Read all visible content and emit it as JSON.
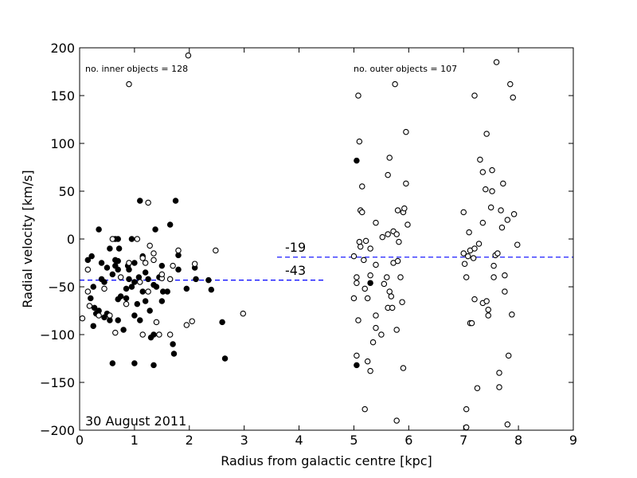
{
  "chart_data": {
    "type": "scatter",
    "xlabel": "Radius from galactic centre [kpc]",
    "ylabel": "Radial velocity [km/s]",
    "xlim": [
      0,
      9
    ],
    "ylim": [
      -200,
      200
    ],
    "xticks": [
      0,
      1,
      2,
      3,
      4,
      5,
      6,
      7,
      8,
      9
    ],
    "yticks": [
      -200,
      -150,
      -100,
      -50,
      0,
      50,
      100,
      150,
      200
    ],
    "ytick_labels": [
      "−200",
      "−150",
      "−100",
      "−50",
      "0",
      "50",
      "100",
      "150",
      "200"
    ],
    "annotations": {
      "inner_count": "no. inner objects = 128",
      "outer_count": "no. outer objects = 107",
      "date": "30 August 2011",
      "inner_mean_label": "-43",
      "outer_mean_label": "-19"
    },
    "mean_lines": [
      {
        "name": "inner mean",
        "y": -43,
        "x_range": [
          0,
          4.5
        ],
        "color": "#0000ff"
      },
      {
        "name": "outer mean",
        "y": -19,
        "x_range": [
          3.6,
          9
        ],
        "color": "#0000ff"
      }
    ],
    "series": [
      {
        "name": "filled",
        "marker": "filled",
        "points": [
          [
            0.15,
            -22
          ],
          [
            0.22,
            -18
          ],
          [
            0.25,
            -50
          ],
          [
            0.2,
            -62
          ],
          [
            0.27,
            -72
          ],
          [
            0.3,
            -78
          ],
          [
            0.35,
            -75
          ],
          [
            0.35,
            10
          ],
          [
            0.4,
            -25
          ],
          [
            0.4,
            -42
          ],
          [
            0.45,
            -45
          ],
          [
            0.45,
            -82
          ],
          [
            0.5,
            -30
          ],
          [
            0.55,
            -10
          ],
          [
            0.55,
            -85
          ],
          [
            0.6,
            -37
          ],
          [
            0.65,
            -28
          ],
          [
            0.65,
            -22
          ],
          [
            0.65,
            0
          ],
          [
            0.7,
            0
          ],
          [
            0.7,
            -23
          ],
          [
            0.7,
            -32
          ],
          [
            0.7,
            -63
          ],
          [
            0.7,
            -85
          ],
          [
            0.72,
            -10
          ],
          [
            0.75,
            -60
          ],
          [
            0.8,
            -95
          ],
          [
            0.85,
            -52
          ],
          [
            0.88,
            -28
          ],
          [
            0.9,
            -32
          ],
          [
            0.9,
            -42
          ],
          [
            0.95,
            -50
          ],
          [
            1.0,
            -45
          ],
          [
            1.0,
            -25
          ],
          [
            1.0,
            -80
          ],
          [
            1.05,
            -68
          ],
          [
            1.08,
            -40
          ],
          [
            1.1,
            -85
          ],
          [
            1.1,
            40
          ],
          [
            1.15,
            -55
          ],
          [
            1.2,
            -35
          ],
          [
            1.2,
            -65
          ],
          [
            1.25,
            -42
          ],
          [
            1.28,
            -75
          ],
          [
            1.3,
            -103
          ],
          [
            1.35,
            -100
          ],
          [
            1.38,
            10
          ],
          [
            1.4,
            -50
          ],
          [
            1.45,
            -40
          ],
          [
            1.5,
            -28
          ],
          [
            1.52,
            -55
          ],
          [
            1.6,
            -55
          ],
          [
            1.65,
            15
          ],
          [
            1.7,
            -110
          ],
          [
            1.72,
            -120
          ],
          [
            1.75,
            40
          ],
          [
            1.8,
            -32
          ],
          [
            1.8,
            -17
          ],
          [
            1.95,
            -52
          ],
          [
            2.1,
            -30
          ],
          [
            2.12,
            -42
          ],
          [
            2.35,
            -43
          ],
          [
            2.4,
            -53
          ],
          [
            2.6,
            -87
          ],
          [
            2.65,
            -125
          ],
          [
            0.6,
            -130
          ],
          [
            1.0,
            -130
          ],
          [
            1.35,
            -132
          ],
          [
            0.25,
            -91
          ],
          [
            0.95,
            0
          ],
          [
            1.35,
            -48
          ],
          [
            0.5,
            -78
          ],
          [
            0.85,
            -62
          ],
          [
            1.15,
            -18
          ],
          [
            1.5,
            -65
          ],
          [
            5.05,
            82
          ],
          [
            5.05,
            -132
          ],
          [
            5.3,
            -46
          ]
        ]
      },
      {
        "name": "hollow",
        "marker": "open",
        "points": [
          [
            0.05,
            -83
          ],
          [
            0.15,
            -32
          ],
          [
            0.15,
            -55
          ],
          [
            0.18,
            -70
          ],
          [
            0.35,
            -80
          ],
          [
            0.45,
            -52
          ],
          [
            0.55,
            -80
          ],
          [
            0.6,
            0
          ],
          [
            0.65,
            -98
          ],
          [
            0.85,
            -68
          ],
          [
            0.9,
            162
          ],
          [
            1.05,
            0
          ],
          [
            1.15,
            -100
          ],
          [
            1.15,
            -20
          ],
          [
            1.2,
            -25
          ],
          [
            1.25,
            38
          ],
          [
            1.28,
            -7
          ],
          [
            1.35,
            -15
          ],
          [
            1.35,
            -22
          ],
          [
            1.4,
            -87
          ],
          [
            1.45,
            -100
          ],
          [
            1.5,
            -41
          ],
          [
            1.65,
            -42
          ],
          [
            1.65,
            -100
          ],
          [
            1.7,
            -28
          ],
          [
            1.8,
            -12
          ],
          [
            1.95,
            -90
          ],
          [
            1.98,
            192
          ],
          [
            2.05,
            -86
          ],
          [
            2.1,
            -26
          ],
          [
            2.48,
            -12
          ],
          [
            2.98,
            -78
          ],
          [
            1.1,
            -45
          ],
          [
            1.5,
            -37
          ],
          [
            0.75,
            -40
          ],
          [
            1.25,
            -55
          ],
          [
            0.9,
            -25
          ],
          [
            5.0,
            -18
          ],
          [
            5.0,
            -62
          ],
          [
            5.05,
            -40
          ],
          [
            5.05,
            -46
          ],
          [
            5.05,
            -122
          ],
          [
            5.08,
            -85
          ],
          [
            5.08,
            150
          ],
          [
            5.1,
            102
          ],
          [
            5.1,
            -3
          ],
          [
            5.12,
            -8
          ],
          [
            5.12,
            30
          ],
          [
            5.15,
            55
          ],
          [
            5.15,
            28
          ],
          [
            5.18,
            -22
          ],
          [
            5.2,
            -52
          ],
          [
            5.2,
            -178
          ],
          [
            5.22,
            -2
          ],
          [
            5.25,
            -62
          ],
          [
            5.25,
            -128
          ],
          [
            5.3,
            -38
          ],
          [
            5.3,
            -10
          ],
          [
            5.3,
            -138
          ],
          [
            5.35,
            -108
          ],
          [
            5.4,
            -80
          ],
          [
            5.4,
            -27
          ],
          [
            5.4,
            17
          ],
          [
            5.4,
            -93
          ],
          [
            5.5,
            -100
          ],
          [
            5.52,
            2
          ],
          [
            5.55,
            -47
          ],
          [
            5.6,
            -40
          ],
          [
            5.62,
            5
          ],
          [
            5.62,
            -72
          ],
          [
            5.62,
            67
          ],
          [
            5.65,
            85
          ],
          [
            5.65,
            -55
          ],
          [
            5.68,
            -60
          ],
          [
            5.7,
            -72
          ],
          [
            5.72,
            8
          ],
          [
            5.72,
            -25
          ],
          [
            5.75,
            162
          ],
          [
            5.78,
            -95
          ],
          [
            5.78,
            -190
          ],
          [
            5.78,
            5
          ],
          [
            5.8,
            30
          ],
          [
            5.8,
            -23
          ],
          [
            5.82,
            -3
          ],
          [
            5.85,
            -40
          ],
          [
            5.88,
            -66
          ],
          [
            5.9,
            28
          ],
          [
            5.9,
            -135
          ],
          [
            5.92,
            32
          ],
          [
            5.95,
            58
          ],
          [
            5.95,
            112
          ],
          [
            5.98,
            15
          ],
          [
            7.0,
            -15
          ],
          [
            7.0,
            28
          ],
          [
            7.02,
            -26
          ],
          [
            7.05,
            -40
          ],
          [
            7.05,
            -178
          ],
          [
            7.05,
            -197
          ],
          [
            7.08,
            -18
          ],
          [
            7.1,
            7
          ],
          [
            7.12,
            -88
          ],
          [
            7.12,
            -12
          ],
          [
            7.15,
            -88
          ],
          [
            7.18,
            -20
          ],
          [
            7.2,
            -63
          ],
          [
            7.2,
            150
          ],
          [
            7.2,
            -10
          ],
          [
            7.25,
            -156
          ],
          [
            7.28,
            -5
          ],
          [
            7.3,
            83
          ],
          [
            7.35,
            17
          ],
          [
            7.35,
            -67
          ],
          [
            7.35,
            70
          ],
          [
            7.4,
            52
          ],
          [
            7.42,
            -65
          ],
          [
            7.42,
            110
          ],
          [
            7.45,
            -80
          ],
          [
            7.45,
            -74
          ],
          [
            7.5,
            33
          ],
          [
            7.52,
            50
          ],
          [
            7.52,
            72
          ],
          [
            7.55,
            -40
          ],
          [
            7.55,
            -28
          ],
          [
            7.58,
            -17
          ],
          [
            7.6,
            185
          ],
          [
            7.62,
            -15
          ],
          [
            7.65,
            -140
          ],
          [
            7.65,
            -155
          ],
          [
            7.68,
            30
          ],
          [
            7.7,
            12
          ],
          [
            7.72,
            58
          ],
          [
            7.75,
            -55
          ],
          [
            7.75,
            -38
          ],
          [
            7.8,
            -194
          ],
          [
            7.8,
            20
          ],
          [
            7.82,
            -122
          ],
          [
            7.85,
            162
          ],
          [
            7.88,
            -79
          ],
          [
            7.9,
            148
          ],
          [
            7.92,
            26
          ],
          [
            7.98,
            -6
          ]
        ]
      }
    ]
  }
}
